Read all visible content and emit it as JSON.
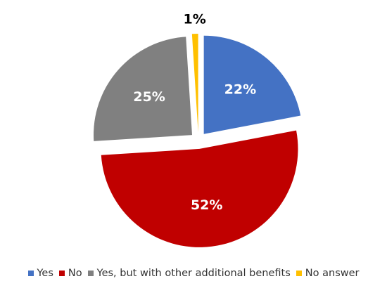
{
  "chart_data": {
    "type": "pie",
    "title": "",
    "categories": [
      "Yes",
      "No",
      "Yes, but with other additional benefits",
      "No answer"
    ],
    "values": [
      22,
      52,
      25,
      1
    ],
    "labels": [
      "22%",
      "52%",
      "25%",
      "1%"
    ],
    "colors": [
      "#4472C4",
      "#C00000",
      "#808080",
      "#FFC000"
    ],
    "label_colors": [
      "#ffffff",
      "#ffffff",
      "#ffffff",
      "#000000"
    ],
    "exploded": true,
    "legend": "bottom"
  }
}
